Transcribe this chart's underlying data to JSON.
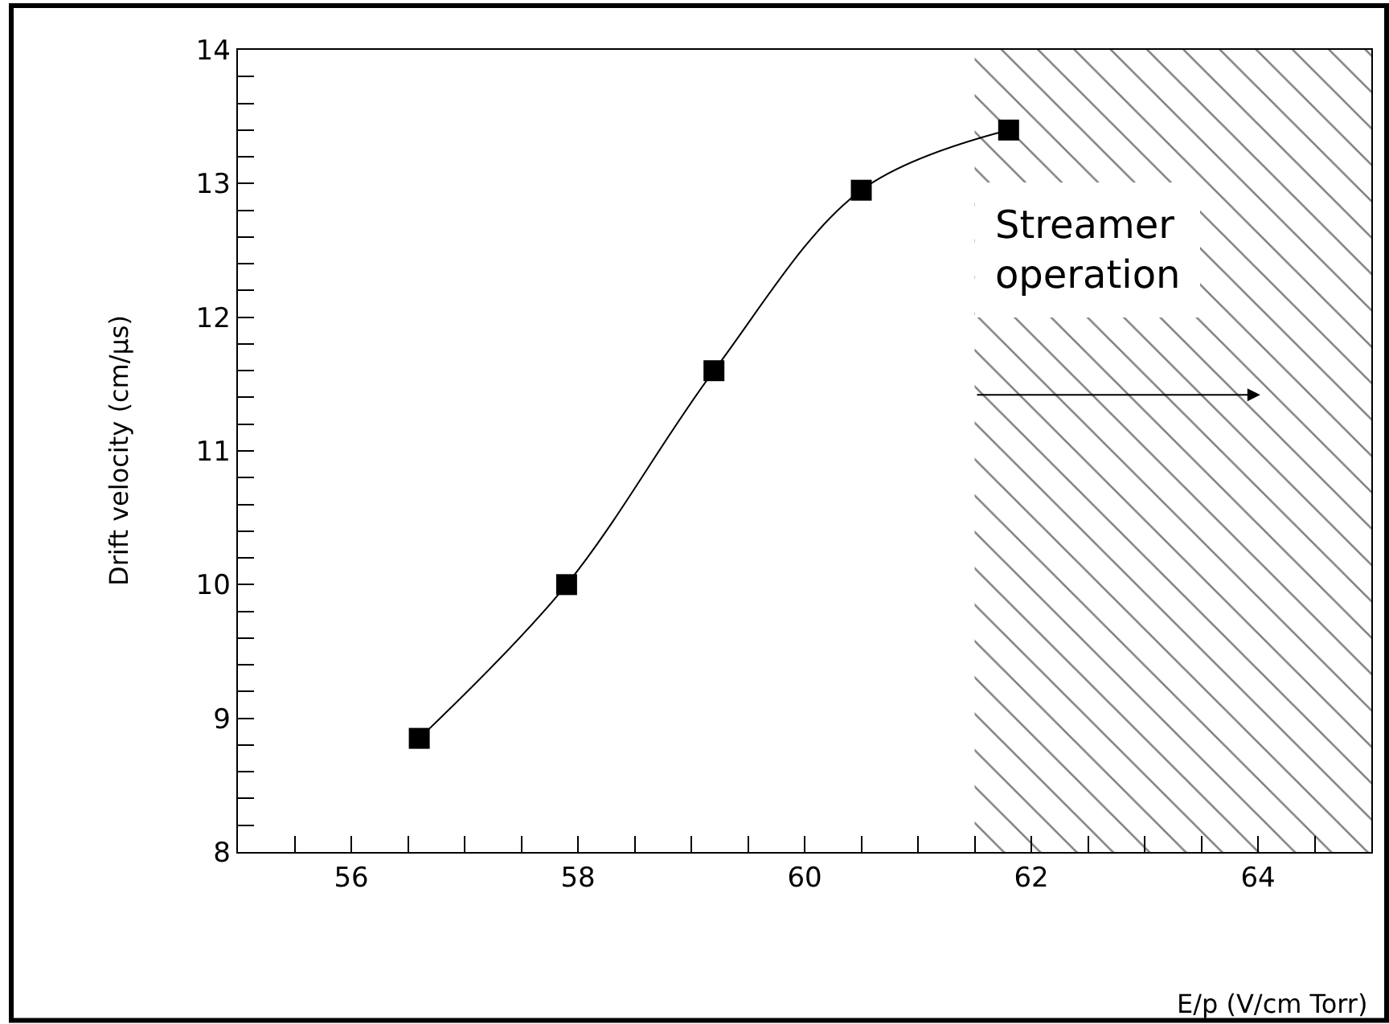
{
  "chart_data": {
    "type": "line",
    "xlabel": "E/p (V/cm Torr)",
    "ylabel": "Drift velocity (cm/μs)",
    "x": [
      56.6,
      57.9,
      59.2,
      60.5,
      61.8
    ],
    "series": [
      {
        "color": "#000000",
        "values": [
          8.85,
          10.0,
          11.6,
          12.95,
          13.4
        ]
      }
    ],
    "marker": "square",
    "line_style": "solid",
    "xlim": [
      55,
      65
    ],
    "ylim": [
      8,
      14
    ],
    "xticks": [
      {
        "value": 55.5,
        "label": null
      },
      56,
      {
        "value": 56.5,
        "label": null
      },
      {
        "value": 57,
        "label": null
      },
      {
        "value": 57.5,
        "label": null
      },
      58,
      {
        "value": 58.5,
        "label": null
      },
      {
        "value": 59,
        "label": null
      },
      {
        "value": 59.5,
        "label": null
      },
      60,
      {
        "value": 60.5,
        "label": null
      },
      {
        "value": 61,
        "label": null
      },
      {
        "value": 61.5,
        "label": null
      },
      62,
      {
        "value": 62.5,
        "label": null
      },
      {
        "value": 63,
        "label": null
      },
      {
        "value": 63.5,
        "label": null
      },
      64,
      {
        "value": 64.5,
        "label": null
      }
    ],
    "yticks": [
      8,
      {
        "value": 8.2,
        "label": null
      },
      {
        "value": 8.4,
        "label": null
      },
      {
        "value": 8.6,
        "label": null
      },
      {
        "value": 8.8,
        "label": null
      },
      9,
      {
        "value": 9.2,
        "label": null
      },
      {
        "value": 9.4,
        "label": null
      },
      {
        "value": 9.6,
        "label": null
      },
      {
        "value": 9.8,
        "label": null
      },
      10,
      {
        "value": 10.2,
        "label": null
      },
      {
        "value": 10.4,
        "label": null
      },
      {
        "value": 10.6,
        "label": null
      },
      {
        "value": 10.8,
        "label": null
      },
      11,
      {
        "value": 11.2,
        "label": null
      },
      {
        "value": 11.4,
        "label": null
      },
      {
        "value": 11.6,
        "label": null
      },
      {
        "value": 11.8,
        "label": null
      },
      12,
      {
        "value": 12.2,
        "label": null
      },
      {
        "value": 12.4,
        "label": null
      },
      {
        "value": 12.6,
        "label": null
      },
      {
        "value": 12.8,
        "label": null
      },
      13,
      {
        "value": 13.2,
        "label": null
      },
      {
        "value": 13.4,
        "label": null
      },
      {
        "value": 13.6,
        "label": null
      },
      {
        "value": 13.8,
        "label": null
      },
      14
    ],
    "bands": [
      {
        "axis": "x",
        "from": 61.5,
        "to": 65,
        "label": "Streamer\noperation",
        "color": "#000000"
      }
    ]
  }
}
